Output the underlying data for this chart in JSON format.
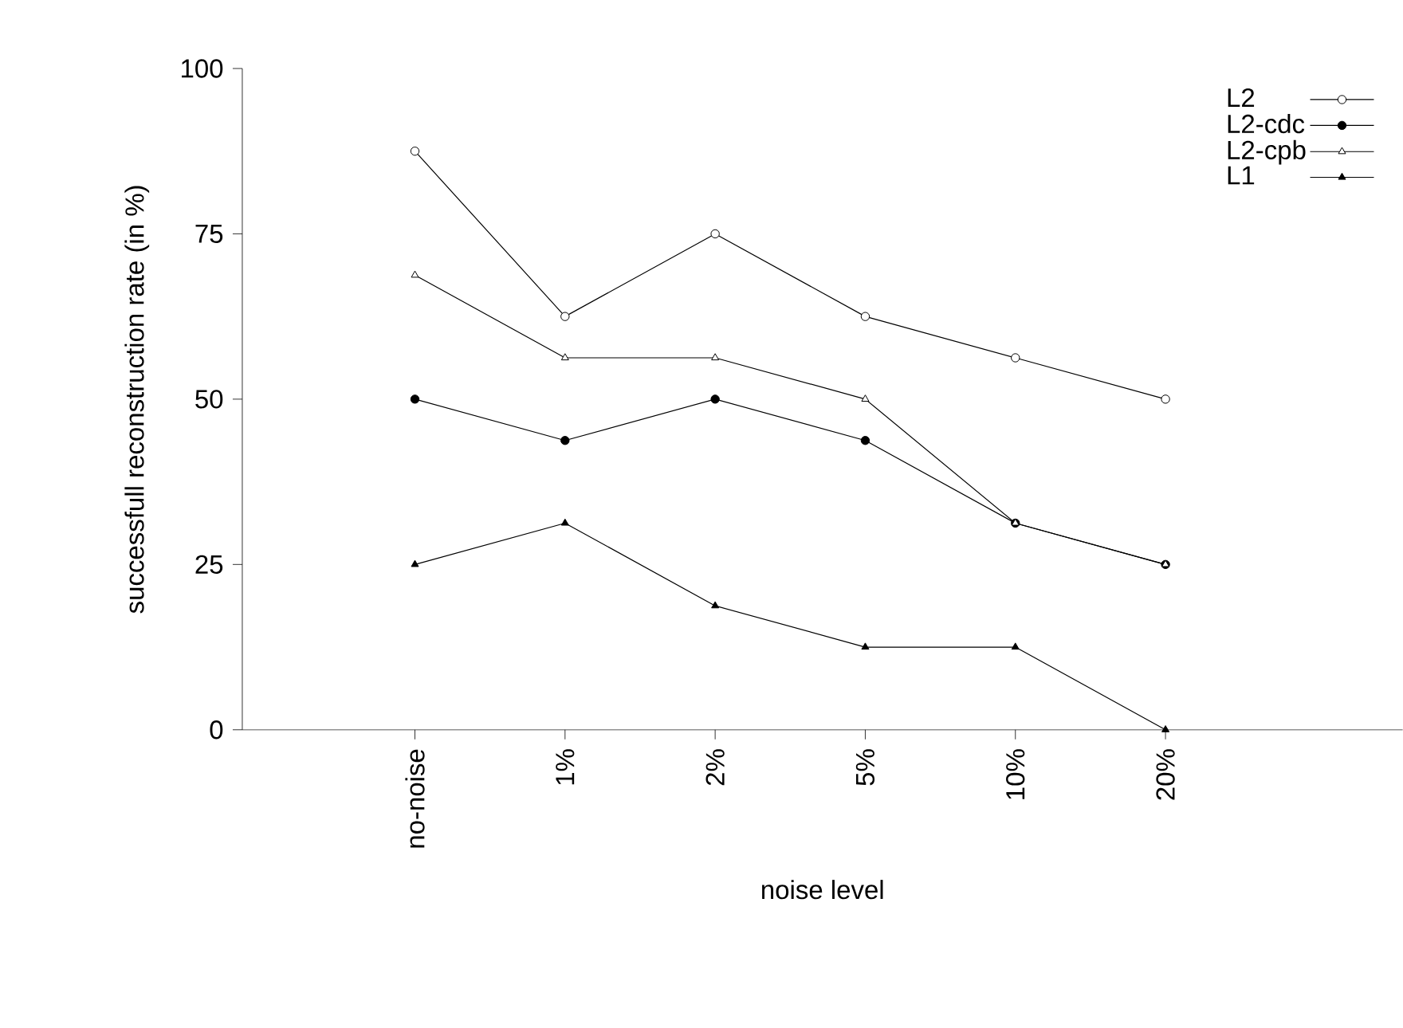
{
  "chart_data": {
    "type": "line",
    "xlabel": "noise level",
    "ylabel": "successfull reconstruction rate (in %)",
    "categories": [
      "no-noise",
      "1%",
      "2%",
      "5%",
      "10%",
      "20%"
    ],
    "series": [
      {
        "name": "L2",
        "color": "#000000",
        "marker": "circle",
        "values": [
          87.5,
          62.5,
          75,
          62.5,
          56.25,
          50
        ]
      },
      {
        "name": "L2-cdc",
        "color": "#000000",
        "marker": "circle",
        "values": [
          50,
          43.75,
          50,
          43.75,
          31.25,
          25
        ]
      },
      {
        "name": "L2-cpb",
        "color": "#000000",
        "marker": "triangle",
        "values": [
          68.75,
          56.25,
          56.25,
          50,
          31.25,
          25
        ]
      },
      {
        "name": "L1",
        "color": "#000000",
        "marker": "triangle",
        "values": [
          25,
          31.25,
          18.75,
          12.5,
          12.5,
          0
        ]
      }
    ],
    "ylim": [
      0,
      100
    ],
    "yticks": [
      0,
      25,
      50,
      75,
      100
    ],
    "legend": "top right",
    "grid": false,
    "line_style": "solid"
  }
}
